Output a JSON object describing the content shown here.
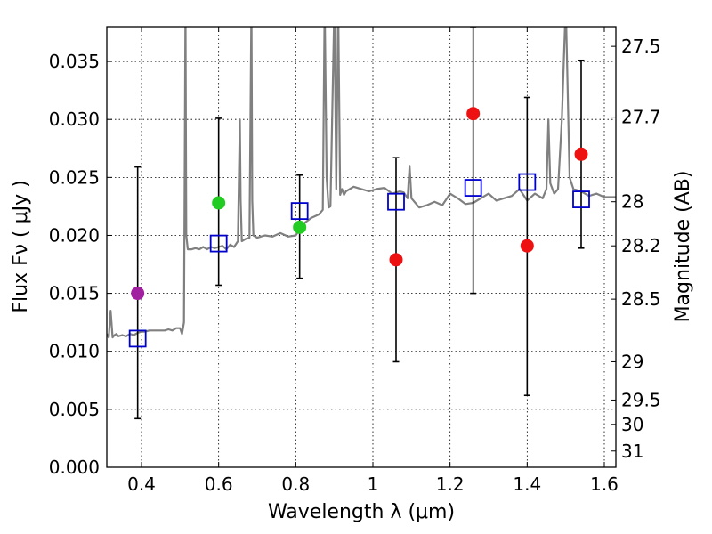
{
  "chart_data": {
    "type": "scatter",
    "title": "",
    "xlabel": "Wavelength  λ (μm)",
    "ylabel": "Flux  Fν  ( μJy )",
    "ylabel_right": "Magnitude (AB)",
    "xlim": [
      0.31,
      1.63
    ],
    "ylim": [
      0.0,
      0.038
    ],
    "grid": true,
    "x_ticks": [
      {
        "value": 0.4,
        "label": "0.4"
      },
      {
        "value": 0.6,
        "label": "0.6"
      },
      {
        "value": 0.8,
        "label": "0.8"
      },
      {
        "value": 1.0,
        "label": "1"
      },
      {
        "value": 1.2,
        "label": "1.2"
      },
      {
        "value": 1.4,
        "label": "1.4"
      },
      {
        "value": 1.6,
        "label": "1.6"
      }
    ],
    "y_ticks": [
      {
        "value": 0.0,
        "label": "0.000"
      },
      {
        "value": 0.005,
        "label": "0.005"
      },
      {
        "value": 0.01,
        "label": "0.010"
      },
      {
        "value": 0.015,
        "label": "0.015"
      },
      {
        "value": 0.02,
        "label": "0.020"
      },
      {
        "value": 0.025,
        "label": "0.025"
      },
      {
        "value": 0.03,
        "label": "0.030"
      },
      {
        "value": 0.035,
        "label": "0.035"
      }
    ],
    "magnitude_ticks": [
      {
        "flux": 0.0363,
        "label": "27.5"
      },
      {
        "flux": 0.0302,
        "label": "27.7"
      },
      {
        "flux": 0.0229,
        "label": "28"
      },
      {
        "flux": 0.0191,
        "label": "28.2"
      },
      {
        "flux": 0.0145,
        "label": "28.5"
      },
      {
        "flux": 0.0091,
        "label": "29"
      },
      {
        "flux": 0.0058,
        "label": "29.5"
      },
      {
        "flux": 0.0037,
        "label": "30"
      },
      {
        "flux": 0.0014,
        "label": "31"
      }
    ],
    "series": [
      {
        "name": "model-spectrum",
        "kind": "line",
        "color": "#808080",
        "x": [
          0.31,
          0.315,
          0.32,
          0.325,
          0.33,
          0.335,
          0.34,
          0.35,
          0.36,
          0.37,
          0.38,
          0.39,
          0.4,
          0.41,
          0.42,
          0.43,
          0.44,
          0.45,
          0.46,
          0.47,
          0.48,
          0.49,
          0.5,
          0.505,
          0.51,
          0.512,
          0.514,
          0.516,
          0.52,
          0.53,
          0.54,
          0.55,
          0.56,
          0.57,
          0.58,
          0.59,
          0.6,
          0.61,
          0.62,
          0.63,
          0.64,
          0.65,
          0.655,
          0.657,
          0.66,
          0.67,
          0.68,
          0.685,
          0.687,
          0.69,
          0.7,
          0.72,
          0.74,
          0.76,
          0.78,
          0.8,
          0.82,
          0.84,
          0.86,
          0.87,
          0.875,
          0.88,
          0.885,
          0.89,
          0.9,
          0.905,
          0.91,
          0.915,
          0.92,
          0.925,
          0.93,
          0.95,
          0.97,
          0.99,
          1.01,
          1.03,
          1.05,
          1.07,
          1.08,
          1.09,
          1.095,
          1.1,
          1.12,
          1.14,
          1.16,
          1.18,
          1.2,
          1.22,
          1.24,
          1.26,
          1.28,
          1.3,
          1.32,
          1.34,
          1.36,
          1.38,
          1.4,
          1.42,
          1.44,
          1.45,
          1.455,
          1.46,
          1.47,
          1.48,
          1.49,
          1.5,
          1.51,
          1.52,
          1.54,
          1.56,
          1.58,
          1.6,
          1.63
        ],
        "y": [
          0.0115,
          0.0112,
          0.0135,
          0.0112,
          0.0114,
          0.0115,
          0.0113,
          0.0114,
          0.0113,
          0.0115,
          0.0114,
          0.0116,
          0.0117,
          0.0117,
          0.0118,
          0.0118,
          0.0118,
          0.0118,
          0.0118,
          0.0119,
          0.0118,
          0.012,
          0.012,
          0.0115,
          0.0125,
          0.025,
          0.04,
          0.02,
          0.0188,
          0.0188,
          0.0189,
          0.0188,
          0.019,
          0.0188,
          0.019,
          0.0189,
          0.019,
          0.0191,
          0.0188,
          0.0192,
          0.019,
          0.0195,
          0.03,
          0.023,
          0.0195,
          0.0197,
          0.0198,
          0.04,
          0.023,
          0.02,
          0.0198,
          0.02,
          0.0199,
          0.0202,
          0.0199,
          0.02,
          0.021,
          0.0215,
          0.0218,
          0.0222,
          0.04,
          0.025,
          0.0224,
          0.0225,
          0.04,
          0.024,
          0.04,
          0.0235,
          0.024,
          0.0235,
          0.0238,
          0.0242,
          0.024,
          0.0238,
          0.024,
          0.0241,
          0.0236,
          0.0238,
          0.0237,
          0.0232,
          0.026,
          0.0232,
          0.0224,
          0.0226,
          0.0229,
          0.0226,
          0.0236,
          0.0232,
          0.0227,
          0.0228,
          0.0232,
          0.0236,
          0.023,
          0.0232,
          0.0234,
          0.024,
          0.023,
          0.0236,
          0.0232,
          0.024,
          0.03,
          0.0245,
          0.0236,
          0.024,
          0.03,
          0.04,
          0.025,
          0.024,
          0.0238,
          0.0234,
          0.0236,
          0.0233,
          0.0233
        ]
      },
      {
        "name": "observed-violet",
        "kind": "points",
        "color": "#a020a0",
        "x": [
          0.39
        ],
        "y": [
          0.015
        ]
      },
      {
        "name": "observed-green",
        "kind": "points",
        "color": "#22cc22",
        "x": [
          0.6,
          0.81
        ],
        "y": [
          0.0228,
          0.0207
        ]
      },
      {
        "name": "observed-red",
        "kind": "points",
        "color": "#ee1111",
        "x": [
          1.06,
          1.26,
          1.4,
          1.54
        ],
        "y": [
          0.0179,
          0.0305,
          0.0191,
          0.027
        ]
      },
      {
        "name": "model-bandpass-flux",
        "kind": "squares",
        "color": "#0000cc",
        "x": [
          0.39,
          0.6,
          0.81,
          1.06,
          1.26,
          1.4,
          1.54
        ],
        "y": [
          0.0111,
          0.0193,
          0.0221,
          0.0229,
          0.0241,
          0.0246,
          0.0231
        ]
      }
    ],
    "error_bars": [
      {
        "x": 0.39,
        "low": 0.0042,
        "high": 0.0259
      },
      {
        "x": 0.6,
        "low": 0.0157,
        "high": 0.0301
      },
      {
        "x": 0.81,
        "low": 0.0163,
        "high": 0.0252
      },
      {
        "x": 1.06,
        "low": 0.0091,
        "high": 0.0267
      },
      {
        "x": 1.26,
        "low": 0.015,
        "high": 0.038
      },
      {
        "x": 1.4,
        "low": 0.0062,
        "high": 0.0319
      },
      {
        "x": 1.54,
        "low": 0.0189,
        "high": 0.0351
      }
    ]
  }
}
